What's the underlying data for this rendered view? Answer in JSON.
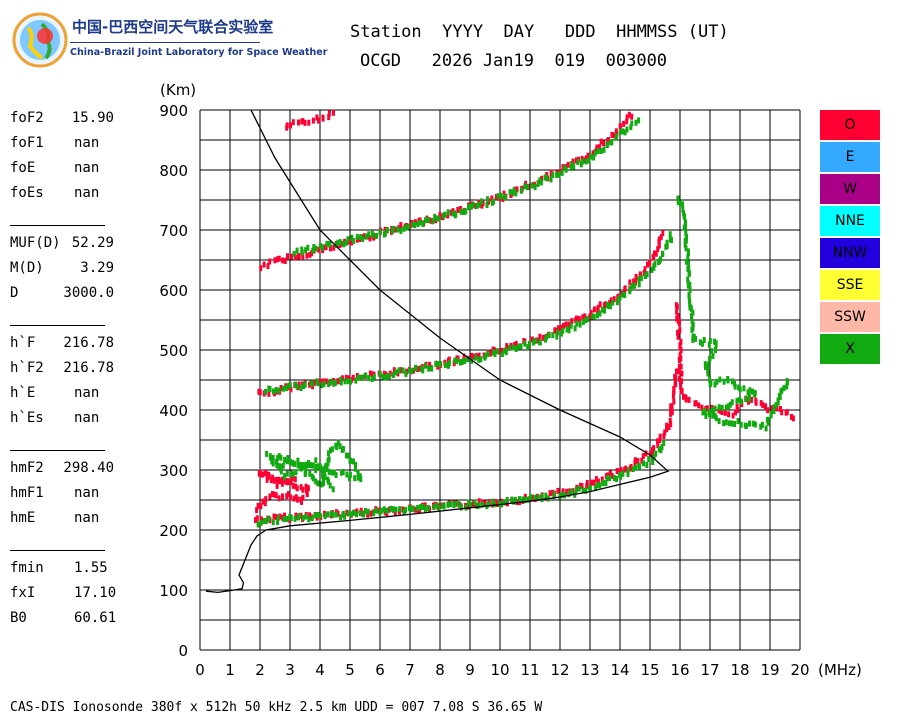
{
  "header": {
    "logo_cn": "中国-巴西空间天气联合实验室",
    "logo_en": "China-Brazil Joint Laboratory for Space Weather",
    "line1": "Station  YYYY  DAY   DDD  HHMMSS (UT)",
    "line2": "OCGD   2026 Jan19  019  003000"
  },
  "params": [
    {
      "label": "foF2",
      "value": "15.90"
    },
    {
      "label": "foF1",
      "value": "nan"
    },
    {
      "label": "foE",
      "value": "nan"
    },
    {
      "label": "foEs",
      "value": "nan"
    },
    {
      "label": "MUF(D)",
      "value": "52.29"
    },
    {
      "label": "M(D)",
      "value": "3.29"
    },
    {
      "label": "D",
      "value": "3000.0"
    },
    {
      "label": "h`F",
      "value": "216.78"
    },
    {
      "label": "h`F2",
      "value": "216.78"
    },
    {
      "label": "h`E",
      "value": "nan"
    },
    {
      "label": "h`Es",
      "value": "nan"
    },
    {
      "label": "hmF2",
      "value": "298.40"
    },
    {
      "label": "hmF1",
      "value": "nan"
    },
    {
      "label": "hmE",
      "value": "nan"
    },
    {
      "label": "fmin",
      "value": "1.55"
    },
    {
      "label": "fxI",
      "value": "17.10"
    },
    {
      "label": "B0",
      "value": "60.61"
    }
  ],
  "legend": [
    {
      "label": "O",
      "color": "#ff0033"
    },
    {
      "label": "E",
      "color": "#33aaff"
    },
    {
      "label": "W",
      "color": "#aa0088"
    },
    {
      "label": "NNE",
      "color": "#00ffff"
    },
    {
      "label": "NNW",
      "color": "#2200dd"
    },
    {
      "label": "SSE",
      "color": "#ffff33"
    },
    {
      "label": "SSW",
      "color": "#ffb8a8"
    },
    {
      "label": "X",
      "color": "#11aa11"
    }
  ],
  "footer": "CAS-DIS Ionosonde 380f x 512h 50 kHz 2.5 km UDD = 007 7.08 S 36.65 W",
  "chart_data": {
    "type": "scatter",
    "xlabel": "(MHz)",
    "ylabel": "(Km)",
    "xlim": [
      0,
      20
    ],
    "ylim": [
      0,
      900
    ],
    "x_ticks": [
      0,
      1,
      2,
      3,
      4,
      5,
      6,
      7,
      8,
      9,
      10,
      11,
      12,
      13,
      14,
      15,
      16,
      17,
      18,
      19,
      20
    ],
    "y_ticks": [
      0,
      100,
      200,
      300,
      400,
      500,
      600,
      700,
      800,
      900
    ],
    "grid": true,
    "series": [
      {
        "name": "O",
        "color": "#ff0033",
        "traces": [
          [
            [
              1.8,
              222
            ],
            [
              3,
              226
            ],
            [
              5,
              233
            ],
            [
              7,
              240
            ],
            [
              9,
              248
            ],
            [
              10,
              252
            ],
            [
              11,
              258
            ],
            [
              12,
              267
            ],
            [
              13,
              282
            ],
            [
              14,
              303
            ],
            [
              15,
              335
            ],
            [
              15.6,
              380
            ],
            [
              15.85,
              470
            ]
          ],
          [
            [
              1.9,
              432
            ],
            [
              3,
              443
            ],
            [
              5,
              458
            ],
            [
              7,
              472
            ],
            [
              9,
              492
            ],
            [
              10,
              506
            ],
            [
              11,
              520
            ],
            [
              12,
              540
            ],
            [
              13,
              567
            ],
            [
              14,
              600
            ],
            [
              14.6,
              628
            ],
            [
              15.1,
              660
            ],
            [
              15.4,
              700
            ]
          ],
          [
            [
              2,
              645
            ],
            [
              3,
              660
            ],
            [
              4,
              672
            ],
            [
              6,
              700
            ],
            [
              8,
              728
            ],
            [
              10,
              760
            ],
            [
              11,
              782
            ],
            [
              12,
              805
            ],
            [
              13,
              832
            ],
            [
              13.8,
              868
            ],
            [
              14.4,
              900
            ]
          ],
          [
            [
              2.8,
              878
            ],
            [
              3.5,
              885
            ],
            [
              4,
              892
            ],
            [
              4.5,
              900
            ]
          ],
          [
            [
              1.8,
              240
            ],
            [
              2.1,
              252
            ],
            [
              2.4,
              266
            ],
            [
              2.7,
              258
            ],
            [
              3,
              262
            ],
            [
              3.3,
              250
            ],
            [
              3.6,
              272
            ],
            [
              1.9,
              300
            ],
            [
              2.5,
              282
            ],
            [
              3.2,
              290
            ]
          ],
          [
            [
              15.8,
              580
            ],
            [
              15.9,
              555
            ],
            [
              16,
              440
            ],
            [
              16.2,
              420
            ],
            [
              16.8,
              408
            ],
            [
              17.2,
              402
            ],
            [
              17.6,
              396
            ],
            [
              18.2,
              424
            ],
            [
              18.7,
              410
            ],
            [
              19.3,
              405
            ],
            [
              19.8,
              390
            ]
          ]
        ]
      },
      {
        "name": "X",
        "color": "#11aa11",
        "traces": [
          [
            [
              1.9,
              218
            ],
            [
              4,
              228
            ],
            [
              6,
              236
            ],
            [
              8,
              244
            ],
            [
              10,
              250
            ],
            [
              12,
              262
            ],
            [
              13,
              276
            ],
            [
              14,
              296
            ],
            [
              15,
              322
            ],
            [
              15.5,
              350
            ]
          ],
          [
            [
              2.1,
              436
            ],
            [
              4,
              450
            ],
            [
              6,
              462
            ],
            [
              8,
              480
            ],
            [
              10,
              500
            ],
            [
              12,
              532
            ],
            [
              13,
              560
            ],
            [
              14,
              592
            ],
            [
              14.7,
              622
            ],
            [
              15.3,
              655
            ],
            [
              15.7,
              700
            ]
          ],
          [
            [
              3.1,
              666
            ],
            [
              5,
              688
            ],
            [
              7,
              712
            ],
            [
              9,
              742
            ],
            [
              11,
              778
            ],
            [
              13,
              826
            ],
            [
              14.2,
              875
            ],
            [
              14.6,
              890
            ]
          ],
          [
            [
              2.5,
              310
            ],
            [
              3,
              322
            ],
            [
              3.5,
              300
            ],
            [
              4,
              280
            ],
            [
              4.3,
              336
            ],
            [
              4.6,
              350
            ],
            [
              5,
              320
            ],
            [
              5.3,
              290
            ],
            [
              2.2,
              330
            ],
            [
              2.8,
              295
            ],
            [
              3.8,
              318
            ],
            [
              4.4,
              272
            ]
          ],
          [
            [
              15.9,
              760
            ],
            [
              16.1,
              730
            ],
            [
              16.4,
              520
            ],
            [
              17.2,
              515
            ],
            [
              16.8,
              480
            ],
            [
              17,
              448
            ],
            [
              17.5,
              458
            ],
            [
              18,
              440
            ],
            [
              18.5,
              430
            ],
            [
              16.7,
              400
            ],
            [
              17.3,
              388
            ],
            [
              18.2,
              380
            ],
            [
              18.8,
              376
            ],
            [
              19.6,
              460
            ]
          ]
        ]
      }
    ],
    "profile": [
      [
        0.2,
        98
      ],
      [
        0.6,
        96
      ],
      [
        1,
        99
      ],
      [
        1.4,
        102
      ],
      [
        1.45,
        112
      ],
      [
        1.3,
        125
      ],
      [
        1.5,
        150
      ],
      [
        1.7,
        175
      ],
      [
        1.9,
        190
      ],
      [
        2.2,
        200
      ],
      [
        3,
        207
      ],
      [
        5,
        216
      ],
      [
        7,
        226
      ],
      [
        9,
        237
      ],
      [
        11,
        248
      ],
      [
        12,
        255
      ],
      [
        13,
        264
      ],
      [
        14,
        276
      ],
      [
        15,
        288
      ],
      [
        15.6,
        298
      ],
      [
        15,
        325
      ],
      [
        14,
        355
      ],
      [
        12,
        400
      ],
      [
        10,
        450
      ],
      [
        8,
        520
      ],
      [
        6,
        600
      ],
      [
        4,
        700
      ],
      [
        2.5,
        820
      ],
      [
        1.7,
        900
      ]
    ]
  }
}
